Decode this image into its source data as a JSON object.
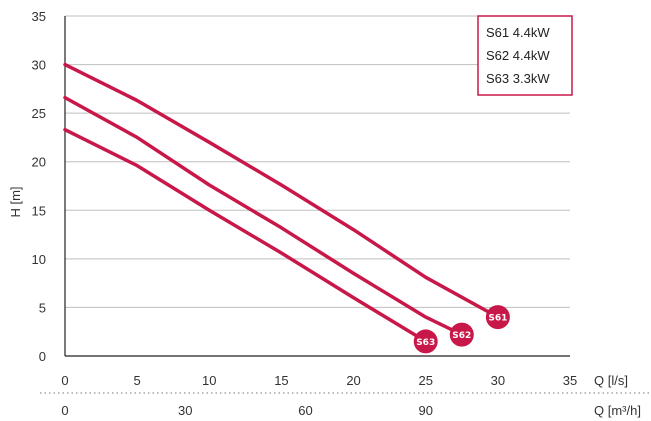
{
  "colors": {
    "curve": "#c8184a",
    "grid": "#bfbfbf",
    "axis": "#222222",
    "text": "#333333"
  },
  "chart_data": {
    "type": "line",
    "xlabel": "Q [l/s]",
    "ylabel": "H [m]",
    "xlim": [
      0,
      35
    ],
    "ylim": [
      0,
      35
    ],
    "x_ticks": [
      0,
      5,
      10,
      15,
      20,
      25,
      30,
      35
    ],
    "y_ticks": [
      0,
      5,
      10,
      15,
      20,
      25,
      30,
      35
    ],
    "grid": "horizontal",
    "secondary_x_axis": {
      "label": "Q [m³/h]",
      "ticks": [
        0,
        30,
        60,
        90
      ],
      "unit_factor": 3.6
    },
    "legend": {
      "placement": "top-right",
      "entries": [
        "S61 4.4kW",
        "S62 4.4kW",
        "S63 3.3kW"
      ]
    },
    "series": [
      {
        "name": "S61",
        "x": [
          0,
          5,
          10,
          15,
          20,
          25,
          30
        ],
        "y": [
          30,
          26.3,
          22,
          17.6,
          13,
          8.1,
          4
        ]
      },
      {
        "name": "S62",
        "x": [
          0,
          5,
          10,
          15,
          20,
          25,
          27.5
        ],
        "y": [
          26.6,
          22.5,
          17.6,
          13.2,
          8.5,
          4,
          2.2
        ]
      },
      {
        "name": "S63",
        "x": [
          0,
          5,
          10,
          15,
          20,
          25
        ],
        "y": [
          23.3,
          19.6,
          15,
          10.6,
          6,
          1.5
        ]
      }
    ]
  }
}
